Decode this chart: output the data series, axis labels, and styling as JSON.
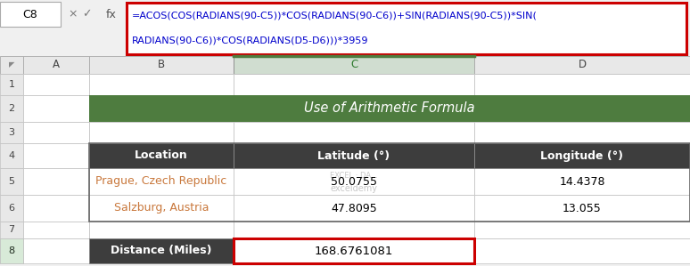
{
  "cell_ref": "C8",
  "formula_line1": "=ACOS(COS(RADIANS(90-C5))*COS(RADIANS(90-C6))+SIN(RADIANS(90-C5))*SIN(",
  "formula_line2": "RADIANS(90-C6))*COS(RADIANS(D5-D6)))*3959",
  "title": "Use of Arithmetic Formula",
  "title_bg": "#4e7c3f",
  "title_text_color": "#ffffff",
  "header_bg": "#3d3d3d",
  "header_text_color": "#ffffff",
  "col_headers": [
    "Location",
    "Latitude (°)",
    "Longitude (°)"
  ],
  "row5": [
    "Prague, Czech Republic",
    "50.0755",
    "14.4378"
  ],
  "row6": [
    "Salzburg, Austria",
    "47.8095",
    "13.055"
  ],
  "dist_label": "Distance (Miles)",
  "dist_value": "168.6761081",
  "row_data_color": "#c9783c",
  "formula_border": "#cc0000",
  "toolbar_bg": "#f0f0f0",
  "col_header_selected_bg": "#d0ddd0",
  "col_header_bg": "#e8e8e8",
  "row_num_bg": "#e8e8e8",
  "cell_bg": "#ffffff",
  "grid_line": "#c0c0c0",
  "formula_text_color": "#0000cc",
  "row_num_text": "#444444",
  "col_letter_text": "#444444",
  "watermark_color": "#c8c8c8"
}
